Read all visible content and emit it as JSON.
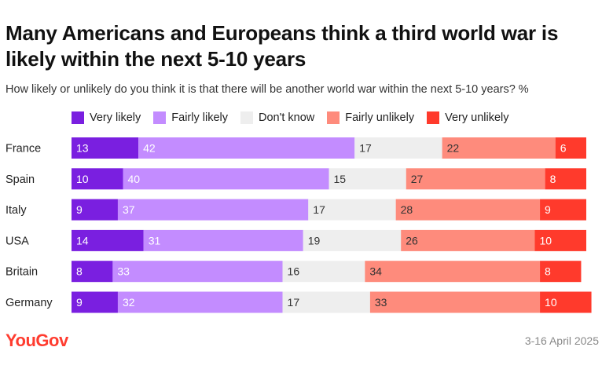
{
  "title": "Many Americans and Europeans think a third world war is likely within the next 5-10 years",
  "subtitle": "How likely or unlikely do you think it is that there will be another world war within the next 5-10 years? %",
  "legend": [
    {
      "label": "Very likely",
      "color": "#7a1fe0"
    },
    {
      "label": "Fairly likely",
      "color": "#c38cff"
    },
    {
      "label": "Don't know",
      "color": "#eeeeee"
    },
    {
      "label": "Fairly unlikely",
      "color": "#fe8b7c"
    },
    {
      "label": "Very unlikely",
      "color": "#ff3a2c"
    }
  ],
  "footer": {
    "logo": "YouGov",
    "date": "3-16 April 2025"
  },
  "chart_data": {
    "type": "bar",
    "orientation": "horizontal",
    "stacked": true,
    "categories": [
      "France",
      "Spain",
      "Italy",
      "USA",
      "Britain",
      "Germany"
    ],
    "series": [
      {
        "name": "Very likely",
        "values": [
          13,
          10,
          9,
          14,
          8,
          9
        ]
      },
      {
        "name": "Fairly likely",
        "values": [
          42,
          40,
          37,
          31,
          33,
          32
        ]
      },
      {
        "name": "Don't know",
        "values": [
          17,
          15,
          17,
          19,
          16,
          17
        ]
      },
      {
        "name": "Fairly unlikely",
        "values": [
          22,
          27,
          28,
          26,
          34,
          33
        ]
      },
      {
        "name": "Very unlikely",
        "values": [
          6,
          8,
          9,
          10,
          8,
          10
        ]
      }
    ],
    "legend_position": "top",
    "grid": false
  }
}
